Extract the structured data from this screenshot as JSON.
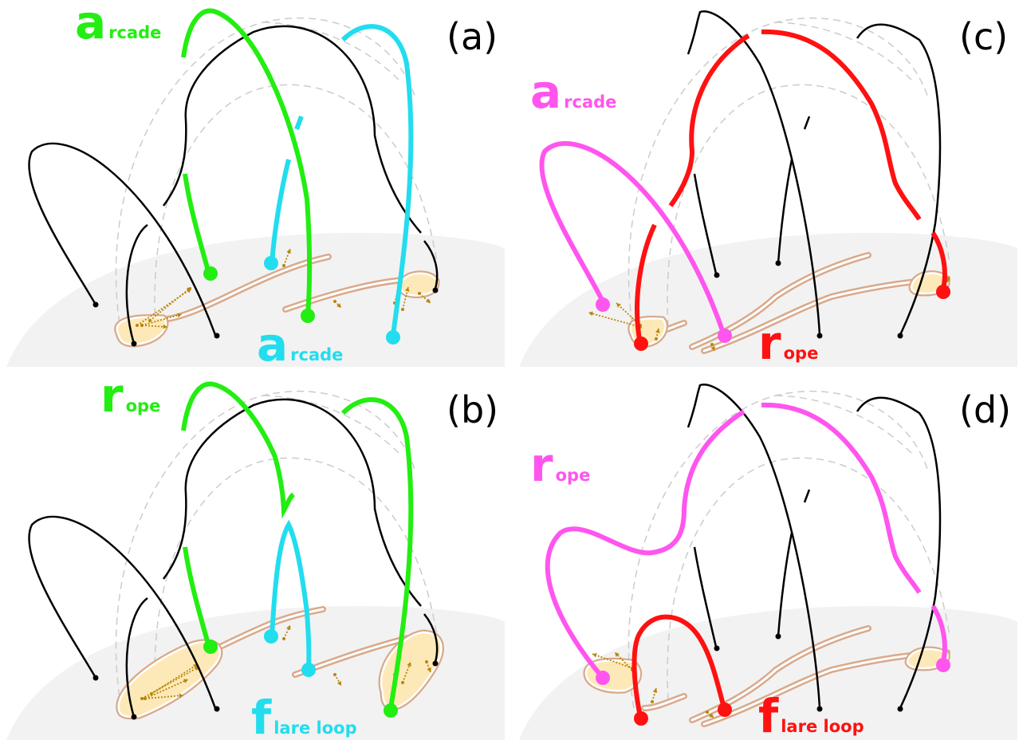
{
  "colors": {
    "green": "#22ee11",
    "cyan": "#22ddee",
    "red": "#ff1111",
    "magenta": "#ff55ee",
    "black": "#000000",
    "surface": "#f2f2f2",
    "pil": "#d9a98a",
    "patch": "#fde9b8",
    "arrow": "#b8860b",
    "guide": "#cccccc"
  },
  "panels": [
    {
      "id": "a",
      "letter": "(a)",
      "labels": [
        {
          "big": "a",
          "small": "rcade",
          "color": "green"
        },
        {
          "big": "a",
          "small": "rcade",
          "color": "cyan"
        }
      ]
    },
    {
      "id": "b",
      "letter": "(b)",
      "labels": [
        {
          "big": "r",
          "small": "ope",
          "color": "green"
        },
        {
          "big": "f",
          "small": "lare loop",
          "color": "cyan"
        }
      ]
    },
    {
      "id": "c",
      "letter": "(c)",
      "labels": [
        {
          "big": "a",
          "small": "rcade",
          "color": "magenta"
        },
        {
          "big": "r",
          "small": "ope",
          "color": "red"
        }
      ]
    },
    {
      "id": "d",
      "letter": "(d)",
      "labels": [
        {
          "big": "r",
          "small": "ope",
          "color": "magenta"
        },
        {
          "big": "f",
          "small": "lare loop",
          "color": "red"
        }
      ]
    }
  ]
}
